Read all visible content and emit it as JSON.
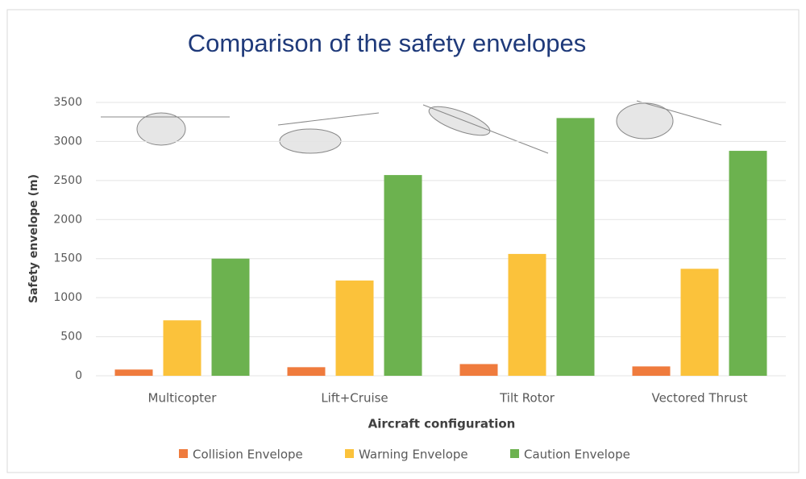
{
  "chart_data": {
    "type": "bar",
    "title": "Comparison of the safety envelopes",
    "x_label": "Aircraft configuration",
    "y_label": "Safety envelope (m)",
    "categories": [
      "Multicopter",
      "Lift+Cruise",
      "Tilt Rotor",
      "Vectored Thrust"
    ],
    "series": [
      {
        "name": "Collision Envelope",
        "color": "#ef7b3d",
        "values": [
          80,
          110,
          150,
          120
        ]
      },
      {
        "name": "Warning Envelope",
        "color": "#fbc23b",
        "values": [
          710,
          1220,
          1560,
          1370
        ]
      },
      {
        "name": "Caution Envelope",
        "color": "#6cb24f",
        "values": [
          1500,
          2570,
          3300,
          2880
        ]
      }
    ],
    "ylim": [
      0,
      3500
    ],
    "yticks": [
      0,
      500,
      1000,
      1500,
      2000,
      2500,
      3000,
      3500
    ],
    "grid": true
  }
}
